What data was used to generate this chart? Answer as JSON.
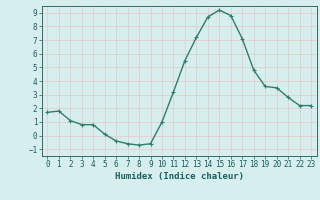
{
  "x": [
    0,
    1,
    2,
    3,
    4,
    5,
    6,
    7,
    8,
    9,
    10,
    11,
    12,
    13,
    14,
    15,
    16,
    17,
    18,
    19,
    20,
    21,
    22,
    23
  ],
  "y": [
    1.7,
    1.8,
    1.1,
    0.8,
    0.8,
    0.1,
    -0.4,
    -0.6,
    -0.7,
    -0.6,
    1.0,
    3.2,
    5.5,
    7.2,
    8.7,
    9.2,
    8.8,
    7.1,
    4.8,
    3.6,
    3.5,
    2.8,
    2.2,
    2.2
  ],
  "line_color": "#2e7d6e",
  "marker": "+",
  "marker_size": 3,
  "linewidth": 1.0,
  "xlabel": "Humidex (Indice chaleur)",
  "xlim": [
    -0.5,
    23.5
  ],
  "ylim": [
    -1.5,
    9.5
  ],
  "yticks": [
    -1,
    0,
    1,
    2,
    3,
    4,
    5,
    6,
    7,
    8,
    9
  ],
  "xticks": [
    0,
    1,
    2,
    3,
    4,
    5,
    6,
    7,
    8,
    9,
    10,
    11,
    12,
    13,
    14,
    15,
    16,
    17,
    18,
    19,
    20,
    21,
    22,
    23
  ],
  "bg_color": "#d6eeee",
  "grid_color": "#e8c8c8",
  "spine_color": "#2e6d6d",
  "label_color": "#1a5f5f",
  "xlabel_fontsize": 6.5,
  "tick_fontsize": 5.5
}
